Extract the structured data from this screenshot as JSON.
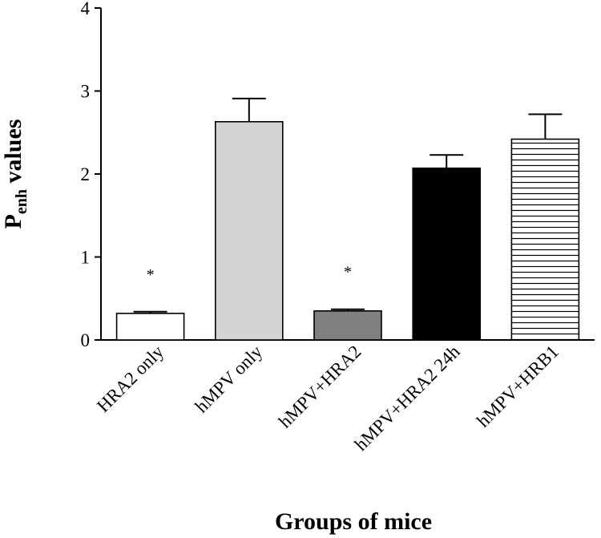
{
  "chart_data": {
    "type": "bar",
    "title": "",
    "xlabel": "Groups of mice",
    "ylabel": {
      "main": "P",
      "subscript": "enh",
      "rest": " values"
    },
    "ylim": [
      0,
      4
    ],
    "yticks": [
      "0",
      "1",
      "2",
      "3",
      "4"
    ],
    "grid": false,
    "categories": [
      "HRA2 only",
      "hMPV only",
      "hMPV+HRA2",
      "hMPV+HRA2 24h",
      "hMPV+HRB1"
    ],
    "values": [
      0.32,
      2.63,
      0.35,
      2.07,
      2.42
    ],
    "errors": [
      0.02,
      0.28,
      0.02,
      0.16,
      0.3
    ],
    "annotations": [
      "*",
      "",
      "*",
      "",
      ""
    ],
    "fills": [
      {
        "color": "#ffffff",
        "pattern": "none"
      },
      {
        "color": "#d3d3d3",
        "pattern": "none"
      },
      {
        "color": "#808080",
        "pattern": "none"
      },
      {
        "color": "#000000",
        "pattern": "none"
      },
      {
        "color": "#ffffff",
        "pattern": "horizontal-lines"
      }
    ]
  }
}
